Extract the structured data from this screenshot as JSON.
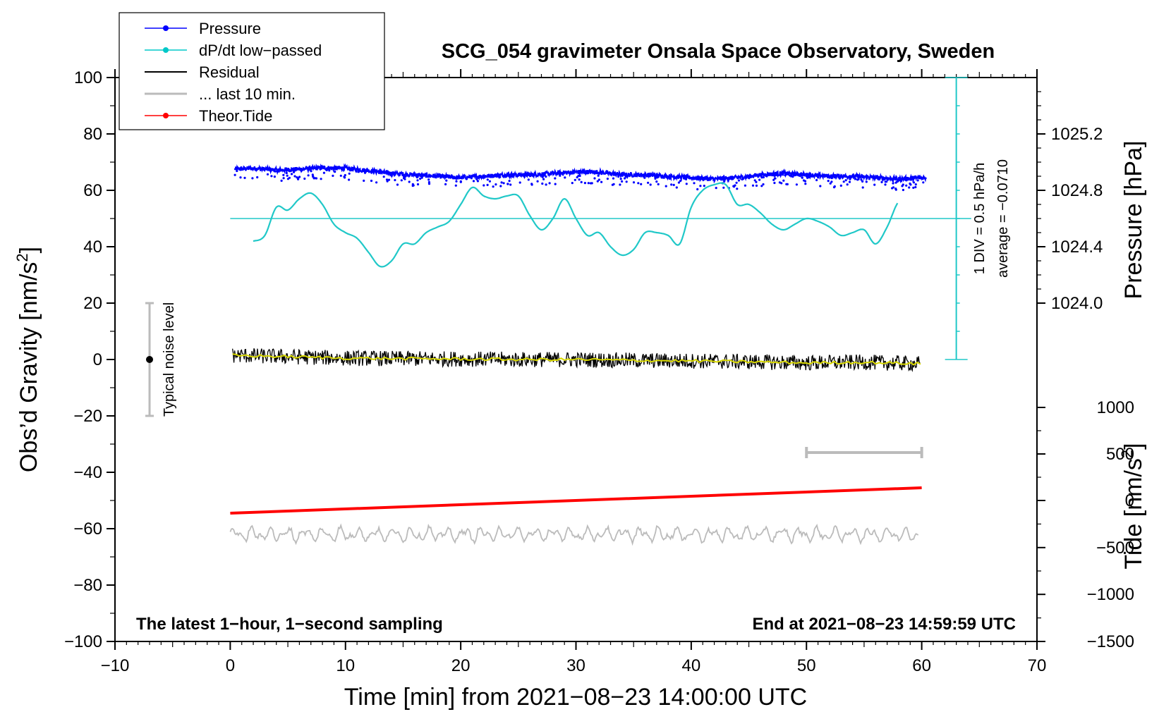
{
  "chart_data": {
    "type": "line",
    "title": "SCG_054 gravimeter Onsala Space Observatory, Sweden",
    "xlabel": "Time [min] from 2021−08−23 14:00:00 UTC",
    "ylabel_left": "Obs’d Gravity [nm/s",
    "ylabel_right_pressure": "Pressure [hPa]",
    "ylabel_right_tide": "Tide [nm/s",
    "superscript": "2",
    "bracket_close": "]",
    "xlim": [
      -10,
      70
    ],
    "ylim_left": [
      -100,
      100
    ],
    "xticks": [
      "−10",
      "0",
      "10",
      "20",
      "30",
      "40",
      "50",
      "60",
      "70"
    ],
    "yticks_left": [
      "−100",
      "−80",
      "−60",
      "−40",
      "−20",
      "0",
      "20",
      "40",
      "60",
      "80",
      "100"
    ],
    "pressure_axis": {
      "ticks": [
        "1024.0",
        "1024.4",
        "1024.8",
        "1025.2"
      ],
      "values": [
        1024.0,
        1024.4,
        1024.8,
        1025.2
      ],
      "ref_left": [
        20,
        40,
        60,
        80
      ]
    },
    "tide_axis": {
      "ticks": [
        "1000",
        "500",
        "0",
        "−500",
        "−1000",
        "−1500"
      ],
      "values": [
        1000,
        500,
        0,
        -500,
        -1000,
        -1500
      ],
      "ref_left": [
        -17,
        -33.5,
        -50,
        -66.7,
        -83.3,
        -100
      ]
    },
    "legend": {
      "position": "top-left",
      "entries": [
        {
          "label": "Pressure",
          "color": "#0000ff",
          "marker": true
        },
        {
          "label": "dP/dt low−passed",
          "color": "#00c8c8",
          "marker": true
        },
        {
          "label": "Residual",
          "color": "#000000",
          "marker": false
        },
        {
          "label": "... last 10 min.",
          "color": "#bbbbbb",
          "marker": false
        },
        {
          "label": "Theor.Tide",
          "color": "#ff0000",
          "marker": true
        }
      ]
    },
    "annotations": {
      "bottom_left": "The latest 1−hour, 1−second sampling",
      "bottom_right": "End at 2021−08−23 14:59:59 UTC",
      "noise_label": "Typical noise level",
      "div_label": "1 DIV = 0.5 hPa/h",
      "average_label": "average = −0.0710"
    },
    "noise_bar": {
      "x": -7,
      "y_low": -20,
      "y_high": 20,
      "center": 0
    },
    "last10_bar": {
      "x_start": 50,
      "x_end": 60,
      "y": -33
    },
    "dpdt_scale": {
      "x": 63,
      "y_bottom": 0,
      "y_top": 100,
      "average_line_y": 50
    },
    "series": [
      {
        "name": "Pressure",
        "color": "#0000ff",
        "x": [
          0,
          2,
          4,
          6,
          8,
          10,
          12,
          14,
          16,
          18,
          20,
          22,
          24,
          26,
          28,
          30,
          32,
          34,
          36,
          38,
          40,
          42,
          44,
          46,
          48,
          50,
          52,
          54,
          56,
          58,
          60
        ],
        "y": [
          67.5,
          67.8,
          67.2,
          67.5,
          68.0,
          67.8,
          67.0,
          66.0,
          65.5,
          65.0,
          64.5,
          65.0,
          65.5,
          65.5,
          66.0,
          66.5,
          66.5,
          65.5,
          65.5,
          65.0,
          64.5,
          64.0,
          64.5,
          65.5,
          66.0,
          65.5,
          65.0,
          65.0,
          64.5,
          64.0,
          64.5
        ]
      },
      {
        "name": "dP/dt low−passed",
        "color": "#20c8c8",
        "x": [
          2,
          3,
          4,
          5,
          6,
          7,
          8,
          9,
          10,
          11,
          12,
          13,
          14,
          15,
          16,
          17,
          18,
          19,
          20,
          21,
          22,
          23,
          24,
          25,
          26,
          27,
          28,
          29,
          30,
          31,
          32,
          33,
          34,
          35,
          36,
          37,
          38,
          39,
          40,
          41,
          42,
          43,
          44,
          45,
          46,
          47,
          48,
          49,
          50,
          51,
          52,
          53,
          54,
          55,
          56,
          57,
          58
        ],
        "y": [
          42,
          44,
          54,
          53,
          57,
          59,
          55,
          48,
          45,
          43,
          38,
          33,
          35,
          41,
          41,
          45,
          47,
          49,
          55,
          61,
          58,
          57,
          58,
          58,
          51,
          46,
          50,
          57,
          50,
          44,
          45,
          40,
          37,
          39,
          45,
          45,
          44,
          41,
          54,
          60,
          62,
          62,
          55,
          55,
          52,
          48,
          46,
          48,
          50,
          49,
          47,
          44,
          45,
          46,
          41,
          47,
          56
        ]
      },
      {
        "name": "Residual",
        "color": "#000000",
        "x": [
          0,
          5,
          10,
          15,
          20,
          25,
          30,
          35,
          40,
          45,
          50,
          55,
          60
        ],
        "y": [
          1.5,
          1.0,
          0.5,
          0.3,
          0.2,
          0.0,
          0.0,
          -0.3,
          -0.5,
          -0.8,
          -1.2,
          -1.0,
          -1.5
        ]
      },
      {
        "name": "... last 10 min.",
        "color": "#bbbbbb",
        "x": [
          0,
          5,
          10,
          15,
          20,
          25,
          30,
          35,
          40,
          45,
          50,
          55,
          60
        ],
        "y": [
          -62,
          -62,
          -62,
          -62,
          -62,
          -62,
          -62,
          -62,
          -62,
          -62,
          -62,
          -62,
          -62
        ]
      },
      {
        "name": "Theor.Tide",
        "color": "#ff0000",
        "x": [
          0,
          60
        ],
        "y": [
          -54.5,
          -45.5
        ]
      }
    ]
  }
}
